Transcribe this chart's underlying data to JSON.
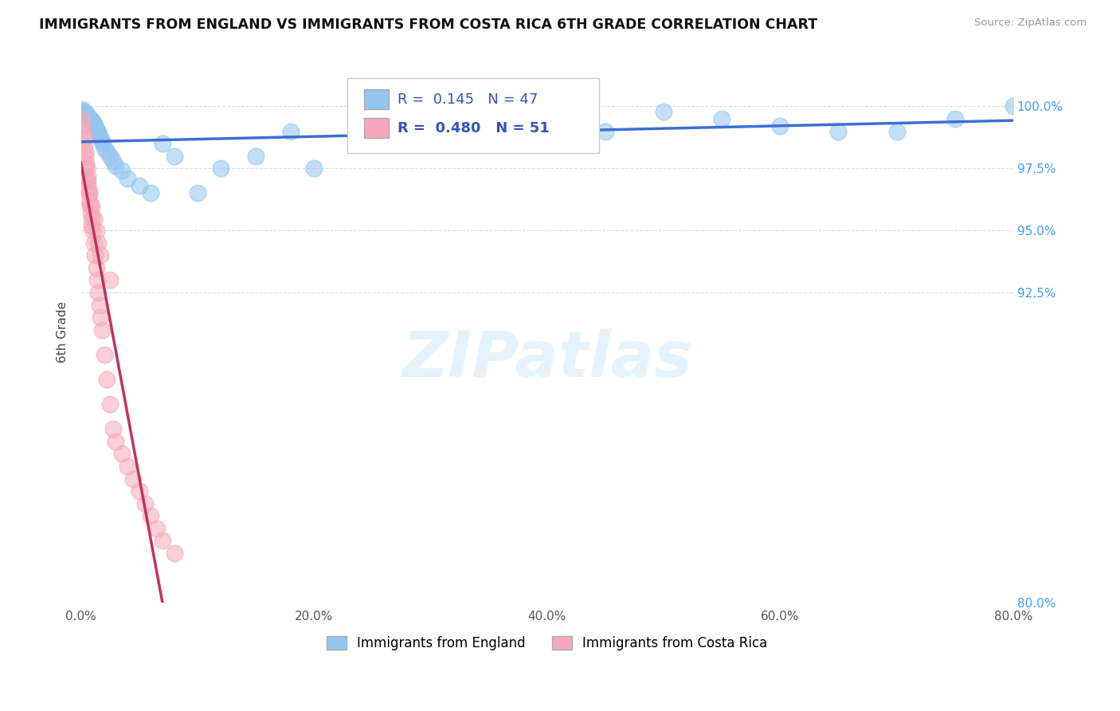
{
  "title": "IMMIGRANTS FROM ENGLAND VS IMMIGRANTS FROM COSTA RICA 6TH GRADE CORRELATION CHART",
  "source": "Source: ZipAtlas.com",
  "ylabel": "6th Grade",
  "ytick_vals": [
    80.0,
    92.5,
    95.0,
    97.5,
    100.0
  ],
  "ytick_labels": [
    "80.0%",
    "92.5%",
    "95.0%",
    "97.5%",
    "100.0%"
  ],
  "xtick_vals": [
    0.0,
    20.0,
    40.0,
    60.0,
    80.0
  ],
  "xtick_labels": [
    "0.0%",
    "20.0%",
    "40.0%",
    "60.0%",
    "80.0%"
  ],
  "xlim": [
    0.0,
    80.0
  ],
  "ylim": [
    80.0,
    101.8
  ],
  "england_color": "#92C5F0",
  "costa_rica_color": "#F5A8BB",
  "england_R": 0.145,
  "england_N": 47,
  "costa_rica_R": 0.48,
  "costa_rica_N": 51,
  "trend_england_color": "#3B6FD4",
  "trend_costa_rica_color": "#C43060",
  "england_x": [
    0.1,
    0.2,
    0.3,
    0.4,
    0.5,
    0.6,
    0.7,
    0.8,
    0.9,
    1.0,
    1.1,
    1.2,
    1.3,
    1.4,
    1.5,
    1.6,
    1.7,
    1.8,
    1.9,
    2.0,
    2.2,
    2.5,
    2.8,
    3.0,
    3.5,
    4.0,
    5.0,
    6.0,
    7.0,
    8.0,
    10.0,
    12.0,
    15.0,
    18.0,
    20.0,
    25.0,
    30.0,
    35.0,
    40.0,
    45.0,
    50.0,
    55.0,
    60.0,
    65.0,
    70.0,
    75.0,
    80.0
  ],
  "england_y": [
    99.9,
    99.8,
    99.8,
    99.7,
    99.7,
    99.6,
    99.5,
    99.5,
    99.4,
    99.4,
    99.3,
    99.2,
    99.1,
    99.0,
    99.0,
    98.8,
    98.7,
    98.6,
    98.5,
    98.3,
    98.2,
    98.0,
    97.8,
    97.6,
    97.4,
    97.1,
    96.8,
    96.5,
    98.5,
    98.0,
    96.5,
    97.5,
    98.0,
    99.0,
    97.5,
    99.2,
    99.0,
    99.5,
    99.3,
    99.0,
    99.8,
    99.5,
    99.2,
    99.0,
    99.0,
    99.5,
    100.0
  ],
  "costa_rica_x": [
    0.05,
    0.1,
    0.15,
    0.2,
    0.25,
    0.3,
    0.35,
    0.4,
    0.45,
    0.5,
    0.55,
    0.6,
    0.65,
    0.7,
    0.75,
    0.8,
    0.85,
    0.9,
    0.95,
    1.0,
    1.1,
    1.2,
    1.3,
    1.4,
    1.5,
    1.6,
    1.7,
    1.8,
    2.0,
    2.2,
    2.5,
    2.8,
    3.0,
    3.5,
    4.0,
    4.5,
    5.0,
    5.5,
    6.0,
    6.5,
    7.0,
    8.0,
    0.3,
    0.5,
    0.7,
    0.9,
    1.1,
    1.3,
    1.5,
    1.7,
    2.5
  ],
  "costa_rica_y": [
    99.5,
    99.3,
    99.1,
    98.9,
    98.7,
    98.4,
    98.2,
    98.0,
    97.7,
    97.5,
    97.2,
    97.0,
    96.7,
    96.5,
    96.2,
    96.0,
    95.7,
    95.5,
    95.2,
    95.0,
    94.5,
    94.0,
    93.5,
    93.0,
    92.5,
    92.0,
    91.5,
    91.0,
    90.0,
    89.0,
    88.0,
    87.0,
    86.5,
    86.0,
    85.5,
    85.0,
    84.5,
    84.0,
    83.5,
    83.0,
    82.5,
    82.0,
    97.5,
    97.0,
    96.5,
    96.0,
    95.5,
    95.0,
    94.5,
    94.0,
    93.0
  ],
  "watermark_text": "ZIPatlas",
  "background_color": "#FFFFFF",
  "grid_color": "#CCCCCC",
  "england_label": "Immigrants from England",
  "costa_rica_label": "Immigrants from Costa Rica"
}
